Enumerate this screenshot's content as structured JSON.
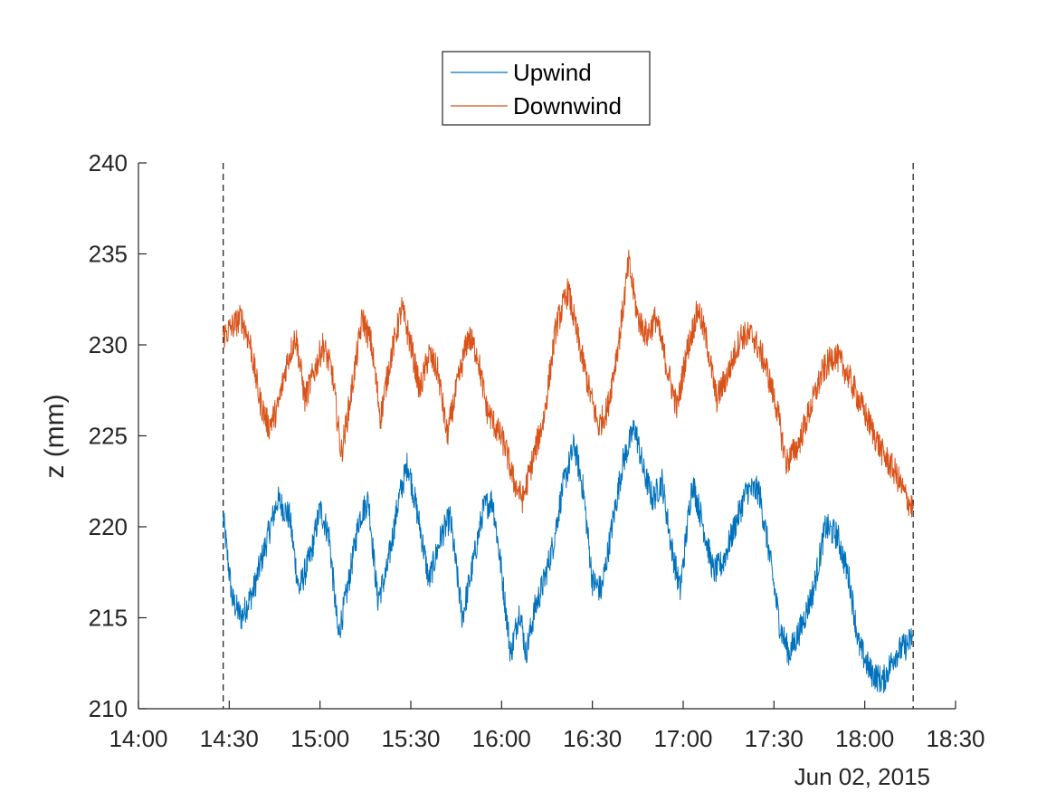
{
  "chart_data": {
    "type": "line",
    "title": "",
    "xlabel": "",
    "ylabel": "z (mm)",
    "date_label": "Jun 02, 2015",
    "xlim": [
      "14:00",
      "18:30"
    ],
    "ylim": [
      210,
      240
    ],
    "xticks": [
      "14:00",
      "14:30",
      "15:00",
      "15:30",
      "16:00",
      "16:30",
      "17:00",
      "17:30",
      "18:00",
      "18:30"
    ],
    "yticks": [
      "210",
      "215",
      "220",
      "225",
      "230",
      "235",
      "240"
    ],
    "vlines": [
      "14:28",
      "18:16"
    ],
    "legend_position": "top-center (outside)",
    "grid": false,
    "series": [
      {
        "name": "Upwind",
        "color": "#0072BD",
        "points": [
          [
            "14:28",
            220.5
          ],
          [
            "14:31",
            216.0
          ],
          [
            "14:34",
            215.0
          ],
          [
            "14:38",
            216.5
          ],
          [
            "14:42",
            219.0
          ],
          [
            "14:46",
            221.5
          ],
          [
            "14:50",
            220.5
          ],
          [
            "14:53",
            216.5
          ],
          [
            "14:57",
            218.5
          ],
          [
            "15:00",
            221.0
          ],
          [
            "15:03",
            219.5
          ],
          [
            "15:06",
            214.0
          ],
          [
            "15:09",
            216.5
          ],
          [
            "15:13",
            220.5
          ],
          [
            "15:16",
            221.5
          ],
          [
            "15:19",
            216.0
          ],
          [
            "15:22",
            217.5
          ],
          [
            "15:26",
            221.5
          ],
          [
            "15:29",
            223.5
          ],
          [
            "15:33",
            220.0
          ],
          [
            "15:36",
            217.0
          ],
          [
            "15:40",
            219.5
          ],
          [
            "15:43",
            220.5
          ],
          [
            "15:47",
            215.0
          ],
          [
            "15:50",
            217.5
          ],
          [
            "15:54",
            221.0
          ],
          [
            "15:57",
            221.5
          ],
          [
            "16:00",
            217.5
          ],
          [
            "16:03",
            213.0
          ],
          [
            "16:06",
            215.5
          ],
          [
            "16:08",
            213.0
          ],
          [
            "16:11",
            215.5
          ],
          [
            "16:14",
            217.0
          ],
          [
            "16:17",
            219.0
          ],
          [
            "16:20",
            222.0
          ],
          [
            "16:24",
            224.5
          ],
          [
            "16:27",
            222.0
          ],
          [
            "16:30",
            217.0
          ],
          [
            "16:33",
            216.5
          ],
          [
            "16:37",
            220.5
          ],
          [
            "16:40",
            223.5
          ],
          [
            "16:44",
            225.5
          ],
          [
            "16:47",
            223.0
          ],
          [
            "16:50",
            221.5
          ],
          [
            "16:53",
            222.5
          ],
          [
            "16:56",
            219.0
          ],
          [
            "16:59",
            216.5
          ],
          [
            "17:03",
            222.5
          ],
          [
            "17:06",
            220.5
          ],
          [
            "17:10",
            217.5
          ],
          [
            "17:13",
            218.0
          ],
          [
            "17:17",
            220.0
          ],
          [
            "17:21",
            222.0
          ],
          [
            "17:25",
            222.0
          ],
          [
            "17:28",
            219.0
          ],
          [
            "17:32",
            214.5
          ],
          [
            "17:35",
            213.0
          ],
          [
            "17:39",
            214.5
          ],
          [
            "17:43",
            216.5
          ],
          [
            "17:47",
            220.0
          ],
          [
            "17:51",
            219.5
          ],
          [
            "17:55",
            217.0
          ],
          [
            "17:58",
            213.5
          ],
          [
            "18:02",
            212.0
          ],
          [
            "18:06",
            211.5
          ],
          [
            "18:10",
            213.0
          ],
          [
            "18:14",
            213.5
          ],
          [
            "18:16",
            214.0
          ]
        ]
      },
      {
        "name": "Downwind",
        "color": "#D95319",
        "points": [
          [
            "14:28",
            230.5
          ],
          [
            "14:31",
            231.0
          ],
          [
            "14:34",
            231.5
          ],
          [
            "14:37",
            230.0
          ],
          [
            "14:40",
            227.0
          ],
          [
            "14:43",
            225.5
          ],
          [
            "14:46",
            226.5
          ],
          [
            "14:49",
            229.0
          ],
          [
            "14:52",
            230.5
          ],
          [
            "14:55",
            227.0
          ],
          [
            "14:58",
            228.5
          ],
          [
            "15:01",
            230.0
          ],
          [
            "15:04",
            228.5
          ],
          [
            "15:07",
            224.0
          ],
          [
            "15:10",
            227.0
          ],
          [
            "15:14",
            231.5
          ],
          [
            "15:17",
            230.0
          ],
          [
            "15:20",
            226.0
          ],
          [
            "15:23",
            229.0
          ],
          [
            "15:27",
            232.0
          ],
          [
            "15:30",
            230.0
          ],
          [
            "15:33",
            227.5
          ],
          [
            "15:36",
            229.5
          ],
          [
            "15:39",
            228.5
          ],
          [
            "15:42",
            225.0
          ],
          [
            "15:45",
            227.5
          ],
          [
            "15:49",
            230.5
          ],
          [
            "15:52",
            229.5
          ],
          [
            "15:55",
            226.5
          ],
          [
            "15:58",
            225.5
          ],
          [
            "16:01",
            224.5
          ],
          [
            "16:04",
            222.5
          ],
          [
            "16:07",
            221.5
          ],
          [
            "16:10",
            223.5
          ],
          [
            "16:14",
            226.0
          ],
          [
            "16:18",
            231.0
          ],
          [
            "16:22",
            233.0
          ],
          [
            "16:25",
            230.5
          ],
          [
            "16:29",
            227.5
          ],
          [
            "16:32",
            225.5
          ],
          [
            "16:35",
            226.5
          ],
          [
            "16:39",
            230.5
          ],
          [
            "16:42",
            234.5
          ],
          [
            "16:45",
            231.5
          ],
          [
            "16:48",
            230.5
          ],
          [
            "16:51",
            231.5
          ],
          [
            "16:55",
            228.5
          ],
          [
            "16:58",
            226.5
          ],
          [
            "17:01",
            229.5
          ],
          [
            "17:05",
            232.0
          ],
          [
            "17:08",
            230.0
          ],
          [
            "17:11",
            227.0
          ],
          [
            "17:15",
            228.5
          ],
          [
            "17:19",
            230.5
          ],
          [
            "17:23",
            230.5
          ],
          [
            "17:27",
            229.0
          ],
          [
            "17:31",
            226.5
          ],
          [
            "17:34",
            223.5
          ],
          [
            "17:38",
            224.5
          ],
          [
            "17:42",
            226.5
          ],
          [
            "17:46",
            228.5
          ],
          [
            "17:50",
            229.5
          ],
          [
            "17:54",
            228.5
          ],
          [
            "17:58",
            227.0
          ],
          [
            "18:02",
            225.5
          ],
          [
            "18:06",
            224.0
          ],
          [
            "18:10",
            223.0
          ],
          [
            "18:14",
            221.5
          ],
          [
            "18:16",
            221.0
          ]
        ]
      }
    ]
  }
}
